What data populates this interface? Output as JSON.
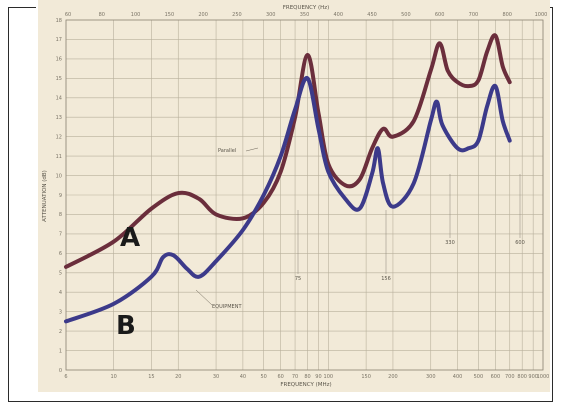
{
  "chart_data": {
    "type": "line",
    "title": "",
    "xlabel_top": "FREQUENCY (Hz)",
    "xlabel_bottom": "FREQUENCY (MHz)",
    "ylabel": "ATTENUATION (dB)",
    "x_scale": "log",
    "xlim": [
      6,
      1000
    ],
    "ylim": [
      0,
      18
    ],
    "grid": true,
    "x_ticks": [
      "6",
      "10",
      "15",
      "20",
      "30",
      "40",
      "50",
      "60",
      "70",
      "80",
      "90",
      "100",
      "150",
      "200",
      "300",
      "400",
      "500",
      "600",
      "700",
      "800",
      "900",
      "1000"
    ],
    "x_tick_values": [
      6,
      10,
      15,
      20,
      30,
      40,
      50,
      60,
      70,
      80,
      90,
      100,
      150,
      200,
      300,
      400,
      500,
      600,
      700,
      800,
      900,
      1000
    ],
    "top_ticks": [
      "60",
      "80",
      "100",
      "150",
      "200",
      "250",
      "300",
      "350",
      "400",
      "450",
      "500",
      "600",
      "700",
      "800",
      "1000"
    ],
    "y_ticks": [
      "0",
      "1",
      "2",
      "3",
      "4",
      "5",
      "6",
      "7",
      "8",
      "9",
      "10",
      "11",
      "12",
      "13",
      "14",
      "15",
      "16",
      "17",
      "18"
    ],
    "series": [
      {
        "name": "A",
        "color": "#6b2e3c",
        "points": [
          [
            6,
            5.3
          ],
          [
            10,
            6.6
          ],
          [
            15,
            8.3
          ],
          [
            20,
            9.1
          ],
          [
            25,
            8.8
          ],
          [
            30,
            8.0
          ],
          [
            40,
            7.8
          ],
          [
            50,
            8.6
          ],
          [
            60,
            10.2
          ],
          [
            70,
            13.0
          ],
          [
            80,
            16.2
          ],
          [
            90,
            13.2
          ],
          [
            100,
            10.6
          ],
          [
            120,
            9.5
          ],
          [
            140,
            9.8
          ],
          [
            160,
            11.4
          ],
          [
            180,
            12.4
          ],
          [
            200,
            12.0
          ],
          [
            250,
            12.8
          ],
          [
            300,
            15.4
          ],
          [
            330,
            16.8
          ],
          [
            360,
            15.4
          ],
          [
            400,
            14.8
          ],
          [
            450,
            14.6
          ],
          [
            500,
            14.9
          ],
          [
            550,
            16.4
          ],
          [
            600,
            17.2
          ],
          [
            650,
            15.6
          ],
          [
            700,
            14.8
          ]
        ]
      },
      {
        "name": "B",
        "color": "#3c3a8a",
        "points": [
          [
            6,
            2.5
          ],
          [
            10,
            3.4
          ],
          [
            15,
            4.8
          ],
          [
            17,
            5.8
          ],
          [
            19,
            5.9
          ],
          [
            22,
            5.2
          ],
          [
            25,
            4.8
          ],
          [
            30,
            5.6
          ],
          [
            40,
            7.2
          ],
          [
            50,
            9.0
          ],
          [
            60,
            11.0
          ],
          [
            70,
            13.4
          ],
          [
            80,
            15.0
          ],
          [
            90,
            12.4
          ],
          [
            100,
            10.2
          ],
          [
            120,
            8.8
          ],
          [
            140,
            8.3
          ],
          [
            160,
            10.1
          ],
          [
            170,
            11.4
          ],
          [
            180,
            9.6
          ],
          [
            200,
            8.4
          ],
          [
            250,
            9.6
          ],
          [
            300,
            12.8
          ],
          [
            320,
            13.8
          ],
          [
            340,
            12.6
          ],
          [
            400,
            11.4
          ],
          [
            450,
            11.4
          ],
          [
            500,
            11.8
          ],
          [
            550,
            13.6
          ],
          [
            600,
            14.6
          ],
          [
            650,
            12.8
          ],
          [
            700,
            11.8
          ]
        ]
      }
    ],
    "annotations": [
      "Parallel",
      "EQUIPMENT"
    ],
    "peak_labels": [
      "75",
      "156",
      "330",
      "600"
    ]
  }
}
